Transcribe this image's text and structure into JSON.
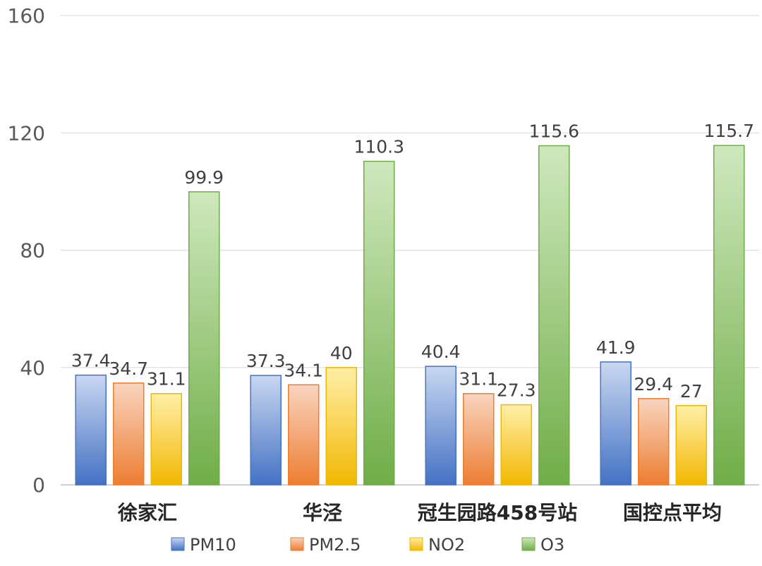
{
  "chart_data": {
    "type": "bar",
    "title": "",
    "xlabel": "",
    "ylabel": "",
    "categories": [
      "徐家汇",
      "华泾",
      "冠生园路458号站",
      "国控点平均"
    ],
    "series": [
      {
        "name": "PM10",
        "values": [
          37.4,
          37.3,
          40.4,
          41.9
        ],
        "color": "#4472C4",
        "light": "#C9D7F1"
      },
      {
        "name": "PM2.5",
        "values": [
          34.7,
          34.1,
          31.1,
          29.4
        ],
        "color": "#ED7D31",
        "light": "#F9D5BF"
      },
      {
        "name": "NO2",
        "values": [
          31.1,
          40,
          27.3,
          27
        ],
        "color": "#F2B800",
        "light": "#FFEFA8"
      },
      {
        "name": "O3",
        "values": [
          99.9,
          110.3,
          115.6,
          115.7
        ],
        "color": "#70AD47",
        "light": "#CFE8BE"
      }
    ],
    "data_labels": [
      [
        "37.4",
        "37.3",
        "40.4",
        "41.9"
      ],
      [
        "34.7",
        "34.1",
        "31.1",
        "29.4"
      ],
      [
        "31.1",
        "40",
        "27.3",
        "27"
      ],
      [
        "99.9",
        "110.3",
        "115.6",
        "115.7"
      ]
    ],
    "ylim": [
      0,
      160
    ],
    "yticks": [
      0,
      40,
      80,
      120,
      160
    ],
    "ytick_labels": [
      "0",
      "40",
      "80",
      "120",
      "160"
    ],
    "grid": true,
    "legend_position": "bottom"
  }
}
